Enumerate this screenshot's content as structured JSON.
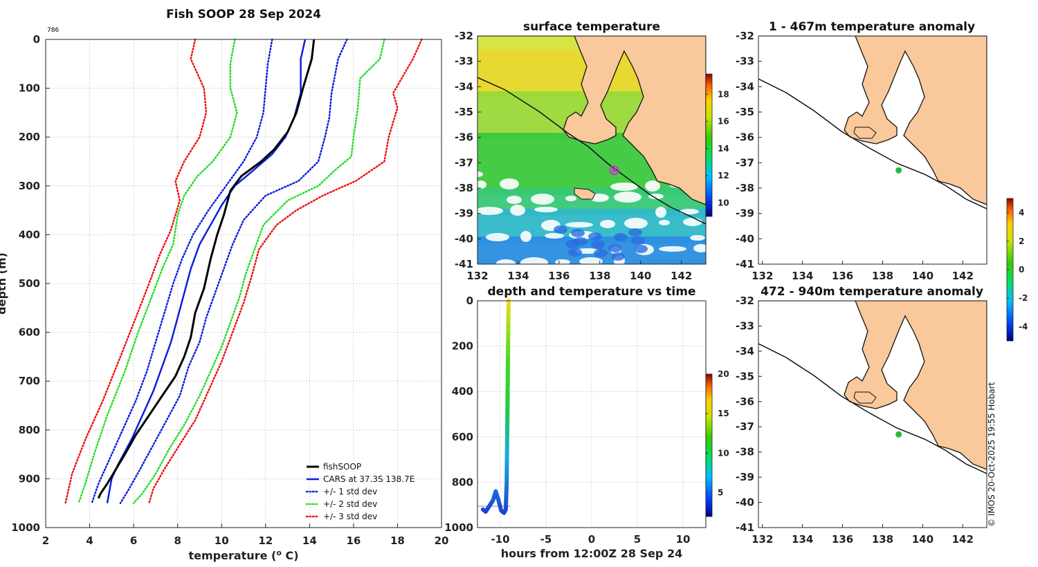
{
  "figure": {
    "main_title": "Fish SOOP 28 Sep 2024",
    "profile_id": "786",
    "credit": "© IMOS 20-Oct-2025 19:55 Hobart",
    "land_color": "#f9c89b"
  },
  "chart_data": [
    {
      "type": "line",
      "name": "profile",
      "title": "Fish SOOP 28 Sep 2024",
      "xlabel": "temperature",
      "xlabel_unit": "(",
      "xlabel_sup": "o",
      "xlabel_end": " C)",
      "ylabel": "depth (m)",
      "xlim": [
        2,
        20
      ],
      "ylim": [
        0,
        1000
      ],
      "y_inverted": true,
      "grid": true,
      "xticks": [
        "2",
        "4",
        "6",
        "8",
        "10",
        "12",
        "14",
        "16",
        "18",
        "20"
      ],
      "yticks": [
        "0",
        "100",
        "200",
        "300",
        "400",
        "500",
        "600",
        "700",
        "800",
        "900",
        "1000"
      ],
      "legend_position": "bottom-right",
      "series": [
        {
          "name": "fishSOOP",
          "color": "#000000",
          "style": "solid",
          "width": 3,
          "points": [
            [
              14.2,
              0
            ],
            [
              14.1,
              40
            ],
            [
              13.7,
              100
            ],
            [
              13.4,
              150
            ],
            [
              13.0,
              190
            ],
            [
              12.4,
              225
            ],
            [
              11.8,
              250
            ],
            [
              10.9,
              280
            ],
            [
              10.4,
              310
            ],
            [
              10.1,
              360
            ],
            [
              9.8,
              400
            ],
            [
              9.5,
              450
            ],
            [
              9.2,
              510
            ],
            [
              8.8,
              560
            ],
            [
              8.6,
              610
            ],
            [
              8.3,
              650
            ],
            [
              7.9,
              690
            ],
            [
              7.3,
              730
            ],
            [
              6.7,
              770
            ],
            [
              6.1,
              810
            ],
            [
              5.6,
              850
            ],
            [
              5.2,
              880
            ],
            [
              4.8,
              910
            ],
            [
              4.5,
              930
            ],
            [
              4.4,
              940
            ]
          ]
        },
        {
          "name": "CARS at 37.3S 138.7E",
          "color": "#0a1ee0",
          "style": "solid",
          "width": 2.5,
          "points": [
            [
              13.8,
              0
            ],
            [
              13.6,
              40
            ],
            [
              13.6,
              110
            ],
            [
              13.3,
              160
            ],
            [
              12.9,
              200
            ],
            [
              12.3,
              235
            ],
            [
              11.4,
              270
            ],
            [
              10.6,
              300
            ],
            [
              10.0,
              340
            ],
            [
              9.5,
              380
            ],
            [
              9.0,
              420
            ],
            [
              8.6,
              470
            ],
            [
              8.3,
              520
            ],
            [
              8.0,
              570
            ],
            [
              7.7,
              620
            ],
            [
              7.3,
              670
            ],
            [
              6.9,
              720
            ],
            [
              6.4,
              770
            ],
            [
              5.9,
              820
            ],
            [
              5.3,
              870
            ],
            [
              5.0,
              900
            ],
            [
              4.8,
              950
            ]
          ]
        },
        {
          "name": "+/- 1 std dev",
          "color": "#0a1ee0",
          "style": "dotted",
          "width": 2.5,
          "label": "+/- 1 std dev",
          "points": [
            [
              12.3,
              0
            ],
            [
              12.1,
              50
            ],
            [
              12.0,
              100
            ],
            [
              11.9,
              150
            ],
            [
              11.6,
              200
            ],
            [
              11.0,
              250
            ],
            [
              10.2,
              300
            ],
            [
              9.4,
              350
            ],
            [
              8.7,
              400
            ],
            [
              8.2,
              450
            ],
            [
              7.8,
              500
            ],
            [
              7.4,
              560
            ],
            [
              7.0,
              620
            ],
            [
              6.6,
              680
            ],
            [
              6.1,
              740
            ],
            [
              5.5,
              800
            ],
            [
              4.9,
              860
            ],
            [
              4.4,
              910
            ],
            [
              4.1,
              950
            ]
          ]
        },
        {
          "name": "+/- 1 std dev upper",
          "color": "#0a1ee0",
          "style": "dotted",
          "width": 2.5,
          "points": [
            [
              15.7,
              0
            ],
            [
              15.3,
              40
            ],
            [
              15.0,
              110
            ],
            [
              14.9,
              160
            ],
            [
              14.7,
              200
            ],
            [
              14.4,
              250
            ],
            [
              13.5,
              290
            ],
            [
              12.0,
              320
            ],
            [
              11.0,
              370
            ],
            [
              10.5,
              420
            ],
            [
              10.1,
              470
            ],
            [
              9.7,
              520
            ],
            [
              9.3,
              570
            ],
            [
              9.0,
              620
            ],
            [
              8.5,
              670
            ],
            [
              8.1,
              730
            ],
            [
              7.5,
              780
            ],
            [
              6.9,
              830
            ],
            [
              6.3,
              880
            ],
            [
              5.8,
              920
            ],
            [
              5.4,
              950
            ]
          ]
        },
        {
          "name": "+/- 2 std dev",
          "color": "#22dd22",
          "style": "dotted",
          "width": 2.5,
          "label": "+/- 2 std dev",
          "points": [
            [
              10.6,
              0
            ],
            [
              10.4,
              50
            ],
            [
              10.4,
              100
            ],
            [
              10.7,
              150
            ],
            [
              10.4,
              200
            ],
            [
              9.6,
              250
            ],
            [
              8.9,
              280
            ],
            [
              8.3,
              320
            ],
            [
              8.0,
              360
            ],
            [
              7.8,
              420
            ],
            [
              7.3,
              470
            ],
            [
              6.8,
              530
            ],
            [
              6.2,
              600
            ],
            [
              5.6,
              680
            ],
            [
              4.8,
              770
            ],
            [
              4.2,
              850
            ],
            [
              3.8,
              910
            ],
            [
              3.5,
              950
            ]
          ]
        },
        {
          "name": "+/- 2 std dev upper",
          "color": "#22dd22",
          "style": "dotted",
          "width": 2.5,
          "points": [
            [
              17.4,
              0
            ],
            [
              17.2,
              40
            ],
            [
              16.3,
              80
            ],
            [
              16.2,
              140
            ],
            [
              16.0,
              200
            ],
            [
              15.9,
              240
            ],
            [
              15.1,
              270
            ],
            [
              14.4,
              300
            ],
            [
              13.0,
              330
            ],
            [
              11.9,
              380
            ],
            [
              11.5,
              430
            ],
            [
              11.1,
              480
            ],
            [
              10.8,
              530
            ],
            [
              10.4,
              580
            ],
            [
              10.0,
              630
            ],
            [
              9.5,
              680
            ],
            [
              9.0,
              730
            ],
            [
              8.3,
              790
            ],
            [
              7.6,
              840
            ],
            [
              7.0,
              890
            ],
            [
              6.4,
              930
            ],
            [
              6.0,
              950
            ]
          ]
        },
        {
          "name": "+/- 3 std dev",
          "color": "#ee1111",
          "style": "dotted",
          "width": 2.5,
          "label": "+/- 3 std dev",
          "points": [
            [
              8.8,
              0
            ],
            [
              8.6,
              40
            ],
            [
              9.2,
              100
            ],
            [
              9.3,
              150
            ],
            [
              9.0,
              200
            ],
            [
              8.3,
              250
            ],
            [
              7.9,
              290
            ],
            [
              8.1,
              330
            ],
            [
              7.7,
              390
            ],
            [
              7.2,
              440
            ],
            [
              6.7,
              500
            ],
            [
              6.1,
              570
            ],
            [
              5.4,
              650
            ],
            [
              4.6,
              740
            ],
            [
              3.8,
              820
            ],
            [
              3.2,
              890
            ],
            [
              2.9,
              950
            ]
          ]
        },
        {
          "name": "+/- 3 std dev upper",
          "color": "#ee1111",
          "style": "dotted",
          "width": 2.5,
          "points": [
            [
              19.1,
              0
            ],
            [
              18.7,
              40
            ],
            [
              17.8,
              110
            ],
            [
              18.0,
              140
            ],
            [
              17.6,
              200
            ],
            [
              17.4,
              250
            ],
            [
              16.1,
              290
            ],
            [
              14.6,
              320
            ],
            [
              13.4,
              350
            ],
            [
              12.5,
              380
            ],
            [
              11.7,
              430
            ],
            [
              11.4,
              480
            ],
            [
              11.0,
              540
            ],
            [
              10.5,
              600
            ],
            [
              10.0,
              660
            ],
            [
              9.4,
              720
            ],
            [
              8.8,
              780
            ],
            [
              8.1,
              830
            ],
            [
              7.4,
              880
            ],
            [
              6.9,
              920
            ],
            [
              6.7,
              950
            ]
          ]
        }
      ],
      "legend": [
        "fishSOOP",
        "CARS at 37.3S 138.7E",
        "+/- 1 std dev",
        "+/- 2 std dev",
        "+/- 3 std dev"
      ]
    },
    {
      "type": "heatmap",
      "name": "surface_temperature",
      "title": "surface temperature",
      "xlim": [
        132,
        143.2
      ],
      "ylim": [
        -41,
        -32
      ],
      "xticks": [
        "132",
        "134",
        "136",
        "138",
        "140",
        "142"
      ],
      "yticks": [
        "-32",
        "-33",
        "-34",
        "-35",
        "-36",
        "-37",
        "-38",
        "-39",
        "-40",
        "-41"
      ],
      "colorbar_ticks": [
        "10",
        "12",
        "14",
        "16",
        "18"
      ],
      "colorbar_range": [
        9,
        19.5
      ],
      "marker": {
        "lon": 138.7,
        "lat": -37.3,
        "color": "#cc33cc"
      }
    },
    {
      "type": "scatter",
      "name": "depth_temp_time",
      "title": "depth and temperature vs time",
      "xlabel": "hours from 12:00Z 28 Sep 24",
      "xlim": [
        -12.5,
        12.5
      ],
      "ylim": [
        0,
        1000
      ],
      "y_inverted": true,
      "xticks": [
        "-10",
        "-5",
        "0",
        "5",
        "10"
      ],
      "xtick_values": [
        -10,
        -5,
        0,
        5,
        10
      ],
      "yticks": [
        "0",
        "200",
        "400",
        "600",
        "800",
        "1000"
      ],
      "colorbar_ticks": [
        "5",
        "10",
        "15",
        "20"
      ],
      "colorbar_range": [
        2,
        20
      ],
      "track": [
        [
          -11.9,
          920
        ],
        [
          -11.6,
          930
        ],
        [
          -11.2,
          905
        ],
        [
          -10.8,
          880
        ],
        [
          -10.5,
          840
        ],
        [
          -10.2,
          880
        ],
        [
          -9.9,
          925
        ],
        [
          -9.6,
          935
        ],
        [
          -9.4,
          920
        ],
        [
          -9.3,
          800
        ],
        [
          -9.25,
          600
        ],
        [
          -9.2,
          400
        ],
        [
          -9.15,
          200
        ],
        [
          -9.1,
          0
        ]
      ]
    },
    {
      "type": "heatmap",
      "name": "anomaly_upper",
      "title": "1 - 467m temperature anomaly",
      "xlim": [
        131.8,
        143.2
      ],
      "ylim": [
        -41,
        -32
      ],
      "xticks": [
        "132",
        "134",
        "136",
        "138",
        "140",
        "142"
      ],
      "yticks": [
        "-32",
        "-33",
        "-34",
        "-35",
        "-36",
        "-37",
        "-38",
        "-39",
        "-40",
        "-41"
      ],
      "marker": {
        "lon": 138.8,
        "lat": -37.3,
        "color": "#22bb44"
      }
    },
    {
      "type": "heatmap",
      "name": "anomaly_lower",
      "title": "472 - 940m temperature anomaly",
      "xlim": [
        131.8,
        143.2
      ],
      "ylim": [
        -41,
        -32
      ],
      "xticks": [
        "132",
        "134",
        "136",
        "138",
        "140",
        "142"
      ],
      "yticks": [
        "-32",
        "-33",
        "-34",
        "-35",
        "-36",
        "-37",
        "-38",
        "-39",
        "-40",
        "-41"
      ],
      "marker": {
        "lon": 138.8,
        "lat": -37.3,
        "color": "#22bb44"
      },
      "colorbar_ticks": [
        "-4",
        "-2",
        "0",
        "2",
        "4"
      ],
      "colorbar_range": [
        -5,
        5
      ]
    }
  ]
}
